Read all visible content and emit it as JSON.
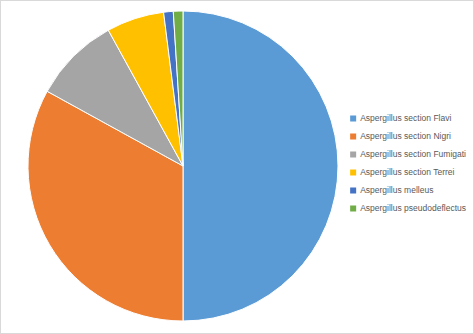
{
  "chart_data": {
    "type": "pie",
    "categories": [
      "Aspergillus section Flavi",
      "Aspergillus section Nigri",
      "Aspergillus section Fumigati",
      "Aspergillus section Terrei",
      "Aspergillus melleus",
      "Aspergillus pseudodeflectus"
    ],
    "values": [
      50,
      33,
      9,
      6,
      1,
      1
    ],
    "colors": [
      "#5b9bd5",
      "#ed7d31",
      "#a5a5a5",
      "#ffc000",
      "#4472c4",
      "#70ad47"
    ],
    "legend": "right"
  }
}
